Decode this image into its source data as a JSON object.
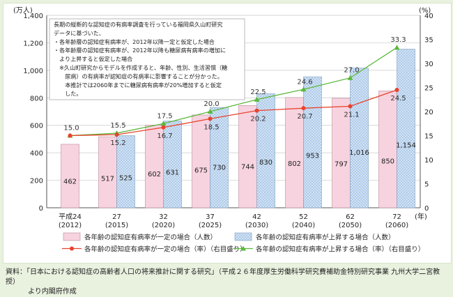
{
  "chart_data": {
    "type": "bar+line",
    "categories": [
      {
        "era": "平成24",
        "year": "(2012)"
      },
      {
        "era": "27",
        "year": "(2015)"
      },
      {
        "era": "32",
        "year": "(2020)"
      },
      {
        "era": "37",
        "year": "(2025)"
      },
      {
        "era": "42",
        "year": "(2030)"
      },
      {
        "era": "52",
        "year": "(2040)"
      },
      {
        "era": "62",
        "year": "(2050)"
      },
      {
        "era": "72",
        "year": "(2060)"
      }
    ],
    "x_unit": "(年)",
    "y_left": {
      "unit": "(万人)",
      "min": 0,
      "max": 1400,
      "ticks": [
        "0",
        "200",
        "400",
        "600",
        "800",
        "1,000",
        "1,200",
        "1,400"
      ]
    },
    "y_right": {
      "unit": "(%)",
      "min": 0,
      "max": 40,
      "ticks": [
        "0",
        "5",
        "10",
        "15",
        "20",
        "25",
        "30",
        "35",
        "40"
      ]
    },
    "bar_series": [
      {
        "name": "各年齢の認知症有病率が一定の場合（人数）",
        "values": [
          462,
          517,
          602,
          675,
          744,
          802,
          797,
          850
        ],
        "labels": [
          "462",
          "517",
          "602",
          "675",
          "744",
          "802",
          "797",
          "850"
        ],
        "color": "#f7d3df"
      },
      {
        "name": "各年齢の認知症有病率が上昇する場合（人数）",
        "values": [
          null,
          525,
          631,
          730,
          830,
          953,
          1016,
          1154
        ],
        "labels": [
          "",
          "525",
          "631",
          "730",
          "830",
          "953",
          "1,016",
          "1,154"
        ],
        "color": "#d2e3f5"
      }
    ],
    "line_series": [
      {
        "name": "各年齢の認知症有病率が一定の場合（率）（右目盛り）",
        "values": [
          15.0,
          15.2,
          16.7,
          18.5,
          20.2,
          20.7,
          21.1,
          24.5
        ],
        "labels": [
          "15.0",
          "15.2",
          "16.7",
          "18.5",
          "20.2",
          "20.7",
          "21.1",
          "24.5"
        ],
        "color": "#e8432e",
        "marker": "circle"
      },
      {
        "name": "各年齢の認知症有病率が上昇する場合（率）（右目盛り）",
        "values": [
          15.0,
          15.5,
          17.5,
          20.0,
          22.5,
          24.6,
          27.0,
          33.3
        ],
        "labels": [
          "15.0",
          "15.5",
          "17.5",
          "20.0",
          "22.5",
          "24.6",
          "27.0",
          "33.3"
        ],
        "color": "#5cb83c",
        "marker": "triangle"
      }
    ],
    "note_lines": [
      "長期の縦断的な認知症の有病率調査を行っている福岡県久山町研究",
      "データに基づいた、",
      "・各年齢層の認知症有病率が、2012年以降一定と仮定した場合",
      "・各年齢層の認知症有病率が、2012年以降も糖尿病有病率の増加に",
      "　より上昇すると仮定した場合",
      "　※久山町研究からモデルを作成すると、年齢、性別、生活習慣（糖",
      "　　尿病）の有病率が認知症の有病率に影響することが分かった。",
      "　　本推計では2060年までに糖尿病有病率が20%増加すると仮定",
      "　　した。"
    ]
  },
  "source": {
    "line1": "資料：「日本における認知症の高齢者人口の将来推計に関する研究」（平成２６年度厚生労働科学研究費補助金特別研究事業 九州大学二宮教授）",
    "line2": "より内閣府作成"
  }
}
